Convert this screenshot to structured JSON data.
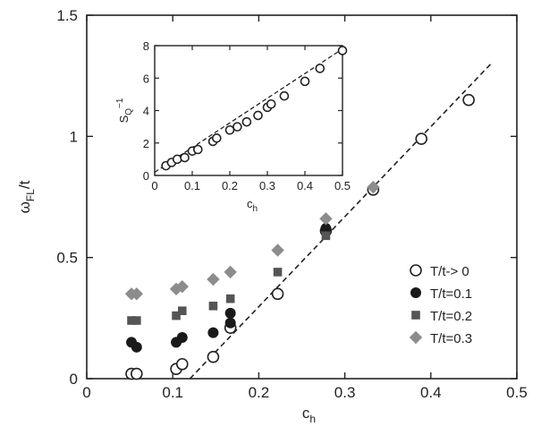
{
  "chart_data": [
    {
      "type": "scatter",
      "title": "",
      "xlabel": "c",
      "xlabel_sub": "h",
      "ylabel": "ω",
      "ylabel_sub": "FL",
      "ylabel_suffix": "/t",
      "xlim": [
        0,
        0.5
      ],
      "ylim": [
        0,
        1.5
      ],
      "xticks": [
        0,
        0.1,
        0.2,
        0.3,
        0.4,
        0.5
      ],
      "xtick_labels": [
        "0",
        "0.1",
        "0.2",
        "0.3",
        "0.4",
        "0.5"
      ],
      "yticks": [
        0,
        0.5,
        1,
        1.5
      ],
      "ytick_labels": [
        "0",
        "0.5",
        "1",
        "1.5"
      ],
      "grid": false,
      "legend_position": "bottom-right",
      "series": [
        {
          "name": "T/t-> 0",
          "marker": "open-circle",
          "color": "#222222",
          "points": [
            [
              0.052,
              0.02
            ],
            [
              0.058,
              0.02
            ],
            [
              0.104,
              0.04
            ],
            [
              0.111,
              0.06
            ],
            [
              0.147,
              0.09
            ],
            [
              0.167,
              0.21
            ],
            [
              0.222,
              0.35
            ],
            [
              0.278,
              0.61
            ],
            [
              0.333,
              0.78
            ],
            [
              0.389,
              0.99
            ],
            [
              0.444,
              1.15
            ]
          ]
        },
        {
          "name": "T/t=0.1",
          "marker": "filled-circle",
          "color": "#1a1a1a",
          "points": [
            [
              0.052,
              0.15
            ],
            [
              0.058,
              0.13
            ],
            [
              0.104,
              0.15
            ],
            [
              0.111,
              0.17
            ],
            [
              0.147,
              0.19
            ],
            [
              0.167,
              0.27
            ],
            [
              0.167,
              0.23
            ],
            [
              0.278,
              0.62
            ]
          ]
        },
        {
          "name": "T/t=0.2",
          "marker": "filled-square",
          "color": "#555555",
          "points": [
            [
              0.052,
              0.24
            ],
            [
              0.058,
              0.24
            ],
            [
              0.104,
              0.26
            ],
            [
              0.111,
              0.28
            ],
            [
              0.147,
              0.3
            ],
            [
              0.167,
              0.33
            ],
            [
              0.222,
              0.44
            ],
            [
              0.278,
              0.59
            ]
          ]
        },
        {
          "name": "T/t=0.3",
          "marker": "filled-diamond",
          "color": "#8c8c8c",
          "points": [
            [
              0.052,
              0.35
            ],
            [
              0.058,
              0.35
            ],
            [
              0.104,
              0.37
            ],
            [
              0.111,
              0.38
            ],
            [
              0.147,
              0.41
            ],
            [
              0.167,
              0.44
            ],
            [
              0.222,
              0.53
            ],
            [
              0.278,
              0.66
            ],
            [
              0.333,
              0.79
            ]
          ]
        }
      ],
      "fit_line": {
        "style": "dashed",
        "points": [
          [
            0.12,
            0
          ],
          [
            0.47,
            1.3
          ]
        ]
      }
    },
    {
      "type": "scatter",
      "title": "",
      "xlabel": "c",
      "xlabel_sub": "h",
      "ylabel": "S",
      "ylabel_sub": "Q",
      "ylabel_sup": "−1",
      "xlim": [
        0,
        0.5
      ],
      "ylim": [
        0,
        8
      ],
      "xticks": [
        0,
        0.1,
        0.2,
        0.3,
        0.4,
        0.5
      ],
      "xtick_labels": [
        "0",
        "0.1",
        "0.2",
        "0.3",
        "0.4",
        "0.5"
      ],
      "yticks": [
        0,
        2,
        4,
        6,
        8
      ],
      "ytick_labels": [
        "0",
        "2",
        "4",
        "6",
        "8"
      ],
      "grid": false,
      "series": [
        {
          "name": "",
          "marker": "open-circle",
          "color": "#222222",
          "points": [
            [
              0.03,
              0.6
            ],
            [
              0.045,
              0.8
            ],
            [
              0.06,
              1.0
            ],
            [
              0.08,
              1.1
            ],
            [
              0.1,
              1.5
            ],
            [
              0.115,
              1.6
            ],
            [
              0.155,
              2.1
            ],
            [
              0.165,
              2.3
            ],
            [
              0.2,
              2.8
            ],
            [
              0.22,
              3.0
            ],
            [
              0.245,
              3.3
            ],
            [
              0.275,
              3.7
            ],
            [
              0.3,
              4.2
            ],
            [
              0.31,
              4.4
            ],
            [
              0.345,
              4.9
            ],
            [
              0.4,
              5.8
            ],
            [
              0.44,
              6.6
            ],
            [
              0.5,
              7.7
            ]
          ]
        }
      ],
      "fit_line": {
        "style": "dashed",
        "points": [
          [
            0,
            0.2
          ],
          [
            0.5,
            7.8
          ]
        ]
      }
    }
  ]
}
